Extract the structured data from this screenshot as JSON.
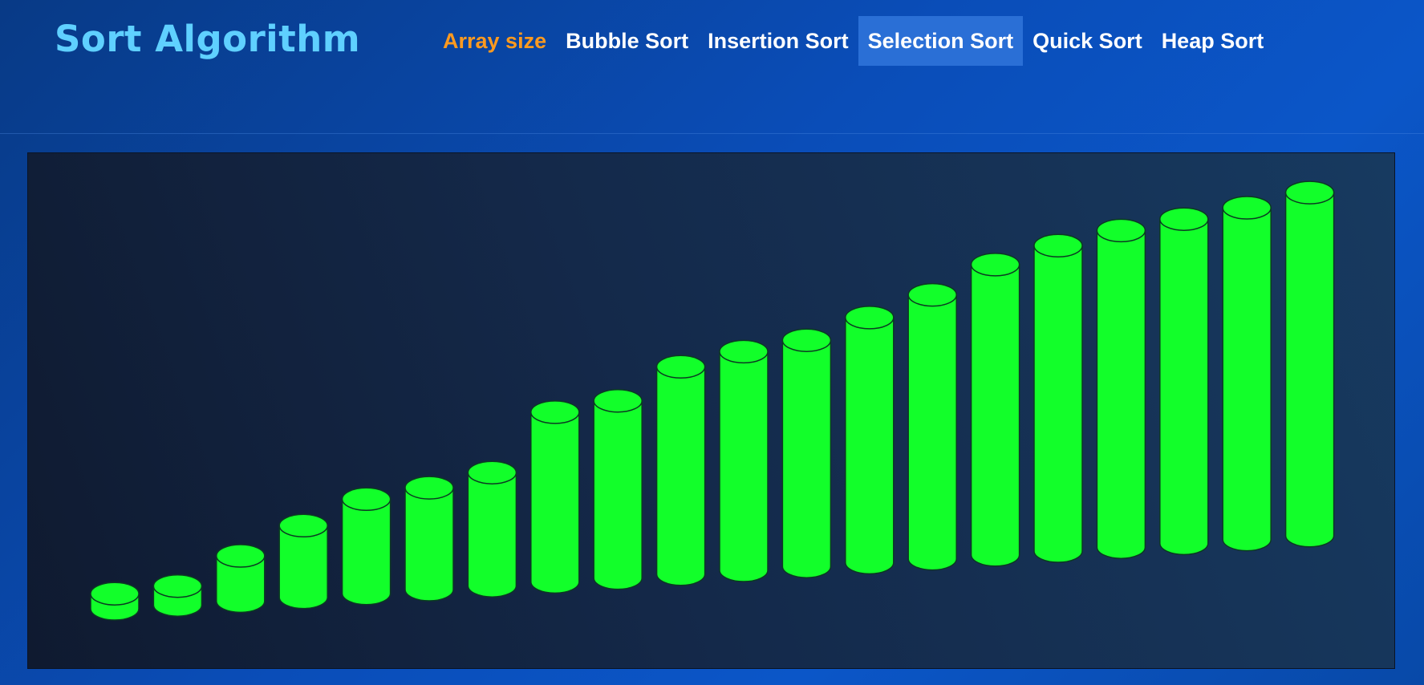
{
  "header": {
    "brand": "Sort Algorithm"
  },
  "nav": {
    "items": [
      {
        "label": "Array size",
        "name": "nav-array-size",
        "style": "accent"
      },
      {
        "label": "Bubble Sort",
        "name": "nav-bubble-sort",
        "style": "normal"
      },
      {
        "label": "Insertion Sort",
        "name": "nav-insertion-sort",
        "style": "normal"
      },
      {
        "label": "Selection Sort",
        "name": "nav-selection-sort",
        "style": "active"
      },
      {
        "label": "Quick Sort",
        "name": "nav-quick-sort",
        "style": "normal"
      },
      {
        "label": "Heap Sort",
        "name": "nav-heap-sort",
        "style": "normal"
      }
    ]
  },
  "colors": {
    "brand": "#5fd0ff",
    "accent": "#ff9a1f",
    "active_tab": "#2a6fd6",
    "bar_fill": "#12ff2a",
    "bar_stroke": "#0b3a22"
  },
  "chart_data": {
    "type": "bar",
    "style": "cylinders",
    "values": [
      4,
      5,
      12,
      19,
      25,
      27,
      30,
      45,
      47,
      55,
      58,
      60,
      65,
      70,
      77,
      81,
      84,
      86,
      88,
      91
    ]
  }
}
